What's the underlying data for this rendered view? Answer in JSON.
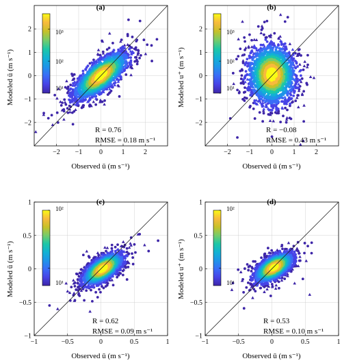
{
  "colormap": [
    "#3e26a8",
    "#4743e6",
    "#3a6cf7",
    "#1f94e8",
    "#12b2d3",
    "#1ec7a6",
    "#76cc6a",
    "#c7c129",
    "#f8ba3d",
    "#f9fb15"
  ],
  "chart_data": [
    {
      "panel": "a",
      "type": "scatter-density",
      "title": "(a)",
      "xlabel": "Observed ū (m s⁻¹)",
      "ylabel": "Modeled ū (m s⁻¹)",
      "xlim": [
        -3,
        3
      ],
      "ylim": [
        -3,
        3
      ],
      "xticks": [
        -2,
        -1,
        0,
        1,
        2
      ],
      "yticks": [
        -2,
        -1,
        0,
        1,
        2
      ],
      "grid": true,
      "one_to_one_line": true,
      "stats": {
        "R": "R = 0.76",
        "RMSE": "RMSE = 0.18 m s⁻¹"
      },
      "colorbar": {
        "scale": "log",
        "range": [
          10,
          3000
        ],
        "tick_labels": [
          "10¹",
          "10²",
          "10³"
        ],
        "tick_values": [
          10,
          100,
          1000
        ],
        "placement": "top-left"
      },
      "cloud": {
        "center": [
          0,
          0
        ],
        "major_sd": 0.72,
        "minor_sd": 0.28,
        "angle_deg": 38
      }
    },
    {
      "panel": "b",
      "type": "scatter-density",
      "title": "(b)",
      "xlabel": "Observed ū (m s⁻¹)",
      "ylabel": "Modeled u⁺ (m s⁻¹)",
      "xlim": [
        -3,
        3
      ],
      "ylim": [
        -3,
        3
      ],
      "xticks": [
        -2,
        -1,
        0,
        1,
        2
      ],
      "yticks": [
        -2,
        -1,
        0,
        1,
        2
      ],
      "grid": true,
      "one_to_one_line": true,
      "stats": {
        "R": "R = −0.08",
        "RMSE": "RMSE = 0.43 m s⁻¹"
      },
      "colorbar": {
        "scale": "log",
        "range": [
          10,
          3000
        ],
        "tick_labels": [
          "10¹",
          "10²",
          "10³"
        ],
        "tick_values": [
          10,
          100,
          1000
        ],
        "placement": "top-left"
      },
      "cloud": {
        "center": [
          0,
          0.05
        ],
        "major_sd": 0.62,
        "minor_sd": 0.52,
        "angle_deg": 95
      }
    },
    {
      "panel": "c",
      "type": "scatter-density",
      "title": "(c)",
      "xlabel": "Observed ū (m s⁻¹)",
      "ylabel": "Modeled ū (m s⁻¹)",
      "xlim": [
        -1,
        1
      ],
      "ylim": [
        -1,
        1
      ],
      "xticks": [
        -1,
        -0.5,
        0,
        0.5,
        1
      ],
      "yticks": [
        -1,
        -0.5,
        0,
        0.5,
        1
      ],
      "grid": true,
      "one_to_one_line": true,
      "stats": {
        "R": "R = 0.62",
        "RMSE": "RMSE = 0.09 m s⁻¹"
      },
      "colorbar": {
        "scale": "log",
        "range": [
          5,
          100
        ],
        "tick_labels": [
          "10¹",
          "10²"
        ],
        "tick_values": [
          10,
          100
        ],
        "placement": "top-left"
      },
      "cloud": {
        "center": [
          0.03,
          0.0
        ],
        "major_sd": 0.17,
        "minor_sd": 0.075,
        "angle_deg": 35
      }
    },
    {
      "panel": "d",
      "type": "scatter-density",
      "title": "(d)",
      "xlabel": "Observed ū (m s⁻¹)",
      "ylabel": "Modeled u⁺ (m s⁻¹)",
      "xlim": [
        -1,
        1
      ],
      "ylim": [
        -1,
        1
      ],
      "xticks": [
        -1,
        -0.5,
        0,
        0.5,
        1
      ],
      "yticks": [
        -1,
        -0.5,
        0,
        0.5,
        1
      ],
      "grid": true,
      "one_to_one_line": true,
      "stats": {
        "R": "R = 0.53",
        "RMSE": "RMSE = 0.10 m s⁻¹"
      },
      "colorbar": {
        "scale": "log",
        "range": [
          5,
          100
        ],
        "tick_labels": [
          "10¹",
          "10²"
        ],
        "tick_values": [
          10,
          100
        ],
        "placement": "top-left"
      },
      "cloud": {
        "center": [
          0.03,
          0.02
        ],
        "major_sd": 0.16,
        "minor_sd": 0.075,
        "angle_deg": 33
      }
    }
  ]
}
